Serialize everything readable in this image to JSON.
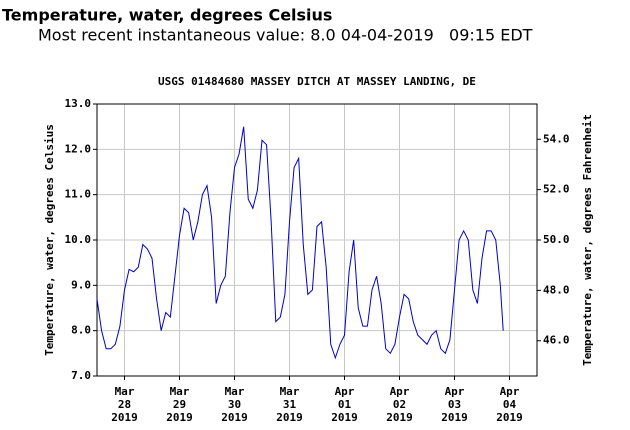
{
  "chart_data": {
    "type": "line",
    "title": "Temperature, water, degrees Celsius",
    "subtitle": "Most recent instantaneous value: 8.0 04-04-2019   09:15 EDT",
    "plot_title": "USGS 01484680 MASSEY DITCH AT MASSEY LANDING, DE",
    "ylabel": "Temperature, water, degrees Celsius",
    "y2label": "Temperature, water, degrees Fahrenheit",
    "xlim": [
      "2019-03-28 00:00",
      "2019-04-05 00:00"
    ],
    "xticks": [
      {
        "value": "2019-03-28 12:00",
        "label": "Mar 28 2019"
      },
      {
        "value": "2019-03-29 12:00",
        "label": "Mar 29 2019"
      },
      {
        "value": "2019-03-30 12:00",
        "label": "Mar 30 2019"
      },
      {
        "value": "2019-03-31 12:00",
        "label": "Mar 31 2019"
      },
      {
        "value": "2019-04-01 12:00",
        "label": "Apr 01 2019"
      },
      {
        "value": "2019-04-02 12:00",
        "label": "Apr 02 2019"
      },
      {
        "value": "2019-04-03 12:00",
        "label": "Apr 03 2019"
      },
      {
        "value": "2019-04-04 12:00",
        "label": "Apr 04 2019"
      }
    ],
    "ylim": [
      7,
      13
    ],
    "yticks": [
      {
        "value": 7,
        "label": "7.0"
      },
      {
        "value": 8,
        "label": "8.0"
      },
      {
        "value": 9,
        "label": "9.0"
      },
      {
        "value": 10,
        "label": "10.0"
      },
      {
        "value": 11,
        "label": "11.0"
      },
      {
        "value": 12,
        "label": "12.0"
      },
      {
        "value": 13,
        "label": "13.0"
      }
    ],
    "y2lim": [
      44.6,
      55.4
    ],
    "y2ticks": [
      {
        "value": 46,
        "label": "46.0"
      },
      {
        "value": 48,
        "label": "48.0"
      },
      {
        "value": 50,
        "label": "50.0"
      },
      {
        "value": 52,
        "label": "52.0"
      },
      {
        "value": 54,
        "label": "54.0"
      }
    ],
    "grid": true,
    "x": [
      "2019-03-28 00:00",
      "2019-03-28 02:00",
      "2019-03-28 04:00",
      "2019-03-28 06:00",
      "2019-03-28 08:00",
      "2019-03-28 10:00",
      "2019-03-28 12:00",
      "2019-03-28 14:00",
      "2019-03-28 16:00",
      "2019-03-28 18:00",
      "2019-03-28 20:00",
      "2019-03-28 22:00",
      "2019-03-29 00:00",
      "2019-03-29 02:00",
      "2019-03-29 04:00",
      "2019-03-29 06:00",
      "2019-03-29 08:00",
      "2019-03-29 10:00",
      "2019-03-29 12:00",
      "2019-03-29 14:00",
      "2019-03-29 16:00",
      "2019-03-29 18:00",
      "2019-03-29 20:00",
      "2019-03-29 22:00",
      "2019-03-30 00:00",
      "2019-03-30 02:00",
      "2019-03-30 04:00",
      "2019-03-30 06:00",
      "2019-03-30 08:00",
      "2019-03-30 10:00",
      "2019-03-30 12:00",
      "2019-03-30 14:00",
      "2019-03-30 16:00",
      "2019-03-30 18:00",
      "2019-03-30 20:00",
      "2019-03-30 22:00",
      "2019-03-31 00:00",
      "2019-03-31 02:00",
      "2019-03-31 04:00",
      "2019-03-31 06:00",
      "2019-03-31 08:00",
      "2019-03-31 10:00",
      "2019-03-31 12:00",
      "2019-03-31 14:00",
      "2019-03-31 16:00",
      "2019-03-31 18:00",
      "2019-03-31 20:00",
      "2019-03-31 22:00",
      "2019-04-01 00:00",
      "2019-04-01 02:00",
      "2019-04-01 04:00",
      "2019-04-01 06:00",
      "2019-04-01 08:00",
      "2019-04-01 10:00",
      "2019-04-01 12:00",
      "2019-04-01 14:00",
      "2019-04-01 16:00",
      "2019-04-01 18:00",
      "2019-04-01 20:00",
      "2019-04-01 22:00",
      "2019-04-02 00:00",
      "2019-04-02 02:00",
      "2019-04-02 04:00",
      "2019-04-02 06:00",
      "2019-04-02 08:00",
      "2019-04-02 10:00",
      "2019-04-02 12:00",
      "2019-04-02 14:00",
      "2019-04-02 16:00",
      "2019-04-02 18:00",
      "2019-04-02 20:00",
      "2019-04-02 22:00",
      "2019-04-03 00:00",
      "2019-04-03 02:00",
      "2019-04-03 04:00",
      "2019-04-03 06:00",
      "2019-04-03 08:00",
      "2019-04-03 10:00",
      "2019-04-03 12:00",
      "2019-04-03 14:00",
      "2019-04-03 16:00",
      "2019-04-03 18:00",
      "2019-04-03 20:00",
      "2019-04-03 22:00",
      "2019-04-04 00:00",
      "2019-04-04 02:00",
      "2019-04-04 04:00",
      "2019-04-04 06:00",
      "2019-04-04 08:00",
      "2019-04-04 09:15"
    ],
    "series": [
      {
        "name": "Temperature, water",
        "color": "#0000cc",
        "values": [
          8.7,
          8.0,
          7.6,
          7.6,
          7.7,
          8.1,
          8.9,
          9.35,
          9.3,
          9.4,
          9.9,
          9.8,
          9.6,
          8.7,
          8.0,
          8.4,
          8.3,
          9.2,
          10.1,
          10.7,
          10.6,
          10.0,
          10.4,
          11.0,
          11.2,
          10.5,
          8.6,
          9.0,
          9.2,
          10.6,
          11.6,
          11.9,
          12.5,
          10.9,
          10.7,
          11.1,
          12.2,
          12.1,
          10.4,
          8.2,
          8.3,
          8.8,
          10.4,
          11.6,
          11.8,
          9.9,
          8.8,
          8.9,
          10.3,
          10.4,
          9.4,
          7.7,
          7.4,
          7.7,
          7.9,
          9.3,
          10.0,
          8.5,
          8.1,
          8.1,
          8.9,
          9.2,
          8.6,
          7.6,
          7.5,
          7.7,
          8.3,
          8.8,
          8.7,
          8.2,
          7.9,
          7.8,
          7.7,
          7.9,
          8.0,
          7.6,
          7.5,
          7.8,
          8.9,
          10.0,
          10.2,
          10.0,
          8.9,
          8.6,
          9.6,
          10.2,
          10.2,
          10.0,
          9.0,
          8.0
        ]
      }
    ]
  }
}
